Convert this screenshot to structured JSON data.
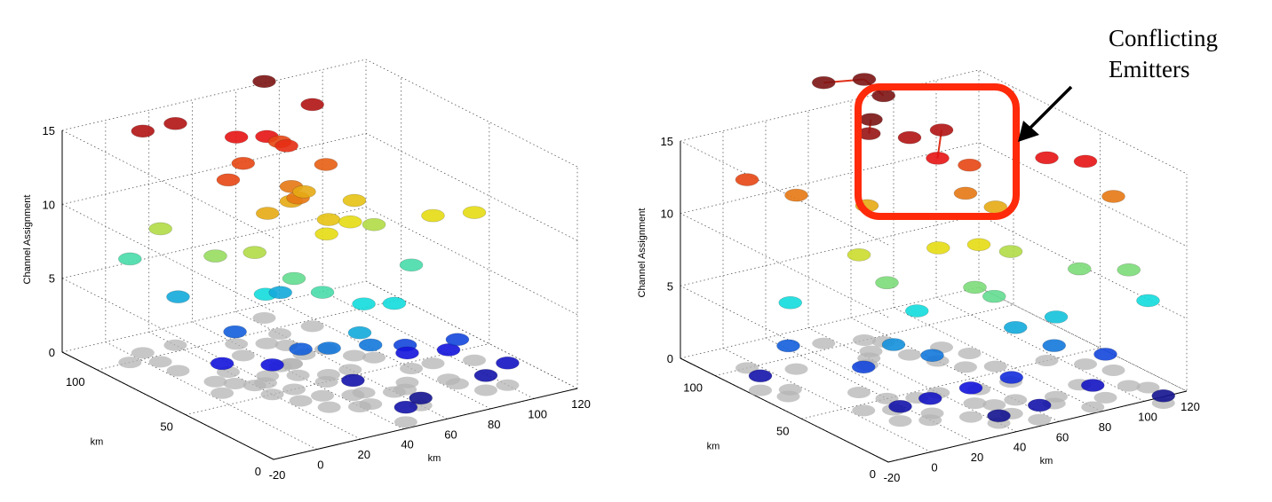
{
  "annotation": {
    "line1": "Conflicting",
    "line2": "Emitters",
    "box_color": "#ff2a0a"
  },
  "chart_data": [
    {
      "type": "scatter3d",
      "title": "",
      "xlabel": "km",
      "ylabel": "km",
      "zlabel": "Channel Assignment",
      "xticks": [
        "-20",
        "0",
        "20",
        "40",
        "60",
        "80",
        "100",
        "120"
      ],
      "yticks": [
        "0",
        "50",
        "100"
      ],
      "zticks": [
        "0",
        "5",
        "10",
        "15"
      ],
      "xlim": [
        -20,
        120
      ],
      "ylim": [
        0,
        120
      ],
      "zlim": [
        0,
        15
      ],
      "grid": true,
      "colormap": "jet",
      "shadow_color": "#b4b4b4",
      "points": [
        {
          "x": 5,
          "y": 105,
          "z": 15
        },
        {
          "x": 20,
          "y": 105,
          "z": 15
        },
        {
          "x": 65,
          "y": 110,
          "z": 16
        },
        {
          "x": 75,
          "y": 95,
          "z": 15
        },
        {
          "x": 40,
          "y": 95,
          "z": 14
        },
        {
          "x": 50,
          "y": 90,
          "z": 14
        },
        {
          "x": 55,
          "y": 85,
          "z": 13.5
        },
        {
          "x": 35,
          "y": 85,
          "z": 13
        },
        {
          "x": 60,
          "y": 95,
          "z": 13
        },
        {
          "x": 20,
          "y": 75,
          "z": 13
        },
        {
          "x": 65,
          "y": 75,
          "z": 12.5
        },
        {
          "x": 45,
          "y": 70,
          "z": 12
        },
        {
          "x": 40,
          "y": 60,
          "z": 12
        },
        {
          "x": 30,
          "y": 65,
          "z": 11
        },
        {
          "x": 50,
          "y": 55,
          "z": 10.5
        },
        {
          "x": 90,
          "y": 45,
          "z": 10
        },
        {
          "x": 45,
          "y": 50,
          "z": 10
        },
        {
          "x": 60,
          "y": 55,
          "z": 10
        },
        {
          "x": 105,
          "y": 40,
          "z": 10
        },
        {
          "x": 20,
          "y": 60,
          "z": 9
        },
        {
          "x": 5,
          "y": 95,
          "z": 9
        },
        {
          "x": 45,
          "y": 70,
          "z": 11
        },
        {
          "x": 55,
          "y": 75,
          "z": 11
        },
        {
          "x": 70,
          "y": 65,
          "z": 10.5
        },
        {
          "x": 10,
          "y": 70,
          "z": 8.5
        },
        {
          "x": 75,
          "y": 60,
          "z": 9
        },
        {
          "x": 30,
          "y": 50,
          "z": 7.5
        },
        {
          "x": -5,
          "y": 100,
          "z": 7
        },
        {
          "x": 35,
          "y": 40,
          "z": 7
        },
        {
          "x": 50,
          "y": 35,
          "z": 6
        },
        {
          "x": 80,
          "y": 45,
          "z": 7
        },
        {
          "x": 5,
          "y": 85,
          "z": 5
        },
        {
          "x": 40,
          "y": 25,
          "z": 5
        },
        {
          "x": 60,
          "y": 30,
          "z": 6
        },
        {
          "x": 15,
          "y": 65,
          "z": 3.5
        },
        {
          "x": 25,
          "y": 40,
          "z": 3.5
        },
        {
          "x": 65,
          "y": 30,
          "z": 3
        },
        {
          "x": 85,
          "y": 25,
          "z": 3
        },
        {
          "x": 45,
          "y": 25,
          "z": 4
        },
        {
          "x": 30,
          "y": 30,
          "z": 4
        },
        {
          "x": 5,
          "y": 60,
          "z": 2
        },
        {
          "x": 20,
          "y": 50,
          "z": 2
        },
        {
          "x": 45,
          "y": 35,
          "z": 1
        },
        {
          "x": 60,
          "y": 15,
          "z": 0.5
        },
        {
          "x": 90,
          "y": 15,
          "z": 1
        },
        {
          "x": 85,
          "y": 30,
          "z": 2
        },
        {
          "x": 100,
          "y": 15,
          "z": 1.5
        },
        {
          "x": 45,
          "y": 5,
          "z": 1
        },
        {
          "x": 40,
          "y": 70,
          "z": 5
        },
        {
          "x": 25,
          "y": 60,
          "z": 6
        },
        {
          "x": 70,
          "y": 35,
          "z": 2
        }
      ]
    },
    {
      "type": "scatter3d",
      "title": "",
      "xlabel": "km",
      "ylabel": "km",
      "zlabel": "Channel Assignment",
      "xticks": [
        "-20",
        "0",
        "20",
        "40",
        "60",
        "80",
        "100",
        "120"
      ],
      "yticks": [
        "0",
        "50",
        "100"
      ],
      "zticks": [
        "0",
        "5",
        "10",
        "15"
      ],
      "xlim": [
        -20,
        120
      ],
      "ylim": [
        0,
        120
      ],
      "zlim": [
        0,
        15
      ],
      "grid": true,
      "colormap": "jet",
      "shadow_color": "#b4b4b4",
      "points": [
        {
          "x": 35,
          "y": 105,
          "z": 18
        },
        {
          "x": 50,
          "y": 100,
          "z": 18
        },
        {
          "x": 55,
          "y": 95,
          "z": 17
        },
        {
          "x": 45,
          "y": 90,
          "z": 16
        },
        {
          "x": 40,
          "y": 85,
          "z": 15.5
        },
        {
          "x": 55,
          "y": 80,
          "z": 15
        },
        {
          "x": 70,
          "y": 80,
          "z": 15
        },
        {
          "x": 60,
          "y": 70,
          "z": 14
        },
        {
          "x": 75,
          "y": 70,
          "z": 13
        },
        {
          "x": 65,
          "y": 60,
          "z": 12
        },
        {
          "x": 75,
          "y": 55,
          "z": 11
        },
        {
          "x": 35,
          "y": 80,
          "z": 11
        },
        {
          "x": 95,
          "y": 50,
          "z": 14
        },
        {
          "x": 105,
          "y": 40,
          "z": 14
        },
        {
          "x": 110,
          "y": 30,
          "z": 12
        },
        {
          "x": 10,
          "y": 90,
          "z": 12
        },
        {
          "x": -5,
          "y": 100,
          "z": 13
        },
        {
          "x": 15,
          "y": 60,
          "z": 9.5
        },
        {
          "x": 40,
          "y": 45,
          "z": 10
        },
        {
          "x": 55,
          "y": 40,
          "z": 10
        },
        {
          "x": 70,
          "y": 40,
          "z": 9
        },
        {
          "x": 90,
          "y": 25,
          "z": 8
        },
        {
          "x": 105,
          "y": 15,
          "z": 8
        },
        {
          "x": 110,
          "y": 10,
          "z": 6
        },
        {
          "x": 20,
          "y": 50,
          "z": 8
        },
        {
          "x": 45,
          "y": 30,
          "z": 8
        },
        {
          "x": 50,
          "y": 25,
          "z": 7.5
        },
        {
          "x": -5,
          "y": 75,
          "z": 6
        },
        {
          "x": 30,
          "y": 45,
          "z": 6
        },
        {
          "x": 75,
          "y": 20,
          "z": 5.5
        },
        {
          "x": 60,
          "y": 25,
          "z": 5
        },
        {
          "x": 15,
          "y": 40,
          "z": 4.5
        },
        {
          "x": 25,
          "y": 30,
          "z": 4
        },
        {
          "x": -10,
          "y": 70,
          "z": 3.5
        },
        {
          "x": 5,
          "y": 45,
          "z": 3
        },
        {
          "x": 70,
          "y": 15,
          "z": 4
        },
        {
          "x": 90,
          "y": 10,
          "z": 3
        },
        {
          "x": 50,
          "y": 15,
          "z": 2.5
        },
        {
          "x": 35,
          "y": 20,
          "z": 2
        },
        {
          "x": 20,
          "y": 25,
          "z": 1.5
        },
        {
          "x": 10,
          "y": 30,
          "z": 1
        },
        {
          "x": -15,
          "y": 80,
          "z": 1
        },
        {
          "x": 55,
          "y": 5,
          "z": 1
        },
        {
          "x": 80,
          "y": 5,
          "z": 1.5
        },
        {
          "x": 105,
          "y": -5,
          "z": 0.5
        },
        {
          "x": 40,
          "y": 10,
          "z": 0.5
        }
      ],
      "links": [
        [
          0,
          1
        ],
        [
          3,
          4
        ],
        [
          6,
          7
        ],
        [
          1,
          2
        ]
      ]
    }
  ]
}
